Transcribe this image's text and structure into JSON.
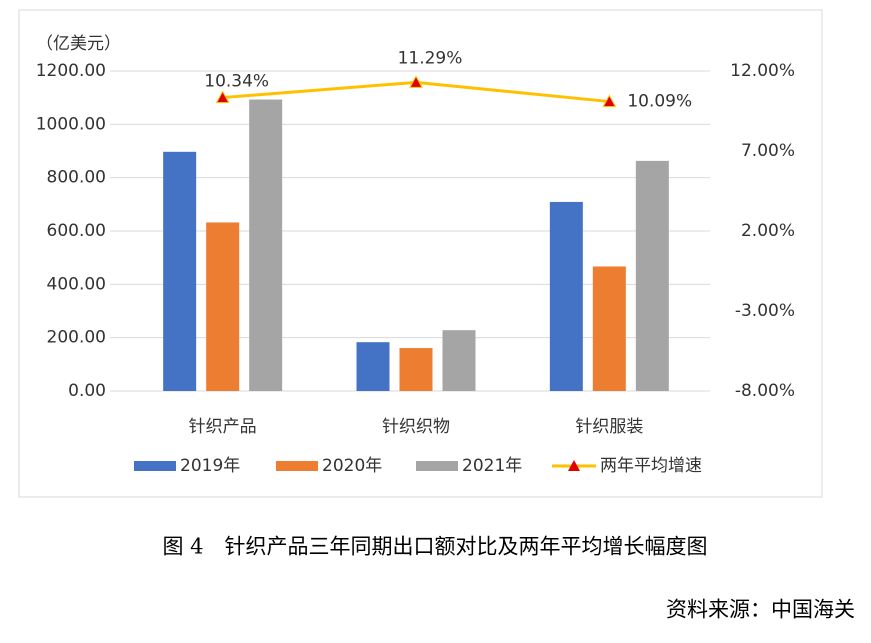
{
  "chart_data": {
    "type": "bar_line",
    "y_unit": "（亿美元）",
    "categories": [
      "针织产品",
      "针织织物",
      "针织服装"
    ],
    "series": [
      {
        "name": "2019年",
        "color": "#4472c4",
        "values": [
          897,
          183,
          709
        ]
      },
      {
        "name": "2020年",
        "color": "#ed7d31",
        "values": [
          632,
          161,
          467
        ]
      },
      {
        "name": "2021年",
        "color": "#a5a5a5",
        "values": [
          1093,
          228,
          863
        ]
      },
      {
        "name": "两年平均增速",
        "type": "line",
        "axis": "y2",
        "color": "#ffc000",
        "marker_color": "#e00000",
        "values": [
          10.34,
          11.29,
          10.09
        ],
        "value_labels": [
          "10.34%",
          "11.29%",
          "10.09%"
        ]
      }
    ],
    "ylim": [
      0,
      1200
    ],
    "yticks": [
      {
        "value": 0,
        "label": "0.00"
      },
      {
        "value": 200,
        "label": "200.00"
      },
      {
        "value": 400,
        "label": "400.00"
      },
      {
        "value": 600,
        "label": "600.00"
      },
      {
        "value": 800,
        "label": "800.00"
      },
      {
        "value": 1000,
        "label": "1000.00"
      },
      {
        "value": 1200,
        "label": "1200.00"
      }
    ],
    "y2lim": [
      -8,
      12
    ],
    "y2ticks": [
      {
        "value": -8,
        "label": "-8.00%"
      },
      {
        "value": -3,
        "label": "-3.00%"
      },
      {
        "value": 2,
        "label": "2.00%"
      },
      {
        "value": 7,
        "label": "7.00%"
      },
      {
        "value": 12,
        "label": "12.00%"
      }
    ],
    "grid": true
  },
  "caption": "图 4　针织产品三年同期出口额对比及两年平均增长幅度图",
  "source": "资料来源：中国海关"
}
